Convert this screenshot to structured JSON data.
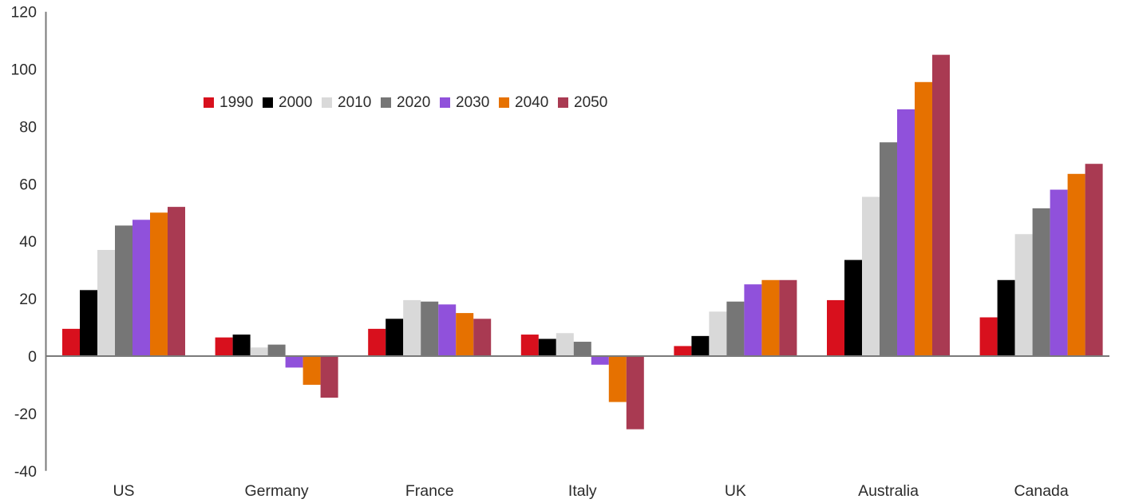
{
  "chart_data": {
    "type": "bar",
    "title": "",
    "xlabel": "",
    "ylabel": "",
    "categories": [
      "US",
      "Germany",
      "France",
      "Italy",
      "UK",
      "Australia",
      "Canada"
    ],
    "series": [
      {
        "name": "1990",
        "color": "#d8101d",
        "values": [
          9.5,
          6.5,
          9.5,
          7.5,
          3.5,
          19.5,
          13.5
        ]
      },
      {
        "name": "2000",
        "color": "#000000",
        "values": [
          23,
          7.5,
          13,
          6,
          7,
          33.5,
          26.5
        ]
      },
      {
        "name": "2010",
        "color": "#d9d9d9",
        "values": [
          37,
          3,
          19.5,
          8,
          15.5,
          55.5,
          42.5
        ]
      },
      {
        "name": "2020",
        "color": "#767676",
        "values": [
          45.5,
          4,
          19,
          5,
          19,
          74.5,
          51.5
        ]
      },
      {
        "name": "2030",
        "color": "#9051db",
        "values": [
          47.5,
          -4,
          18,
          -3,
          25,
          86,
          58
        ]
      },
      {
        "name": "2040",
        "color": "#e67100",
        "values": [
          50,
          -10,
          15,
          -16,
          26.5,
          95.5,
          63.5
        ]
      },
      {
        "name": "2050",
        "color": "#a93a52",
        "values": [
          52,
          -14.5,
          13,
          -25.5,
          26.5,
          105,
          67
        ]
      }
    ],
    "ylim": [
      -40,
      120
    ],
    "yticks": [
      120,
      100,
      80,
      60,
      40,
      20,
      0,
      -20,
      -40
    ],
    "grid": false,
    "legend_position": "top-left-inside",
    "legend_entries": [
      "1990",
      "2000",
      "2010",
      "2020",
      "2030",
      "2040",
      "2050"
    ]
  },
  "style": {
    "axis_color": "#7a7a7a",
    "text_color": "#2b2b2b",
    "background": "#ffffff"
  }
}
